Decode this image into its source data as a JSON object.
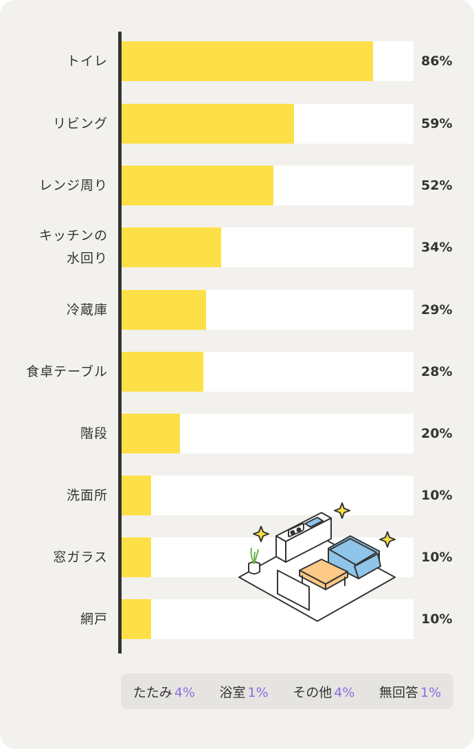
{
  "chart_data": {
    "type": "bar",
    "orientation": "horizontal",
    "title": "",
    "xlabel": "",
    "ylabel": "",
    "xlim": [
      0,
      100
    ],
    "grid": false,
    "categories": [
      "トイレ",
      "リビング",
      "レンジ周り",
      "キッチンの\n水回り",
      "冷蔵庫",
      "食卓テーブル",
      "階段",
      "洗面所",
      "窓ガラス",
      "網戸"
    ],
    "values": [
      86,
      59,
      52,
      34,
      29,
      28,
      20,
      10,
      10,
      10
    ],
    "value_labels": [
      "86%",
      "59%",
      "52%",
      "34%",
      "29%",
      "28%",
      "20%",
      "10%",
      "10%",
      "10%"
    ],
    "bar_color": "#fde047",
    "track_color": "#ffffff",
    "others": [
      {
        "label": "たたみ",
        "value": "4%"
      },
      {
        "label": "浴室",
        "value": "1%"
      },
      {
        "label": "その他",
        "value": "4%"
      },
      {
        "label": "無回答",
        "value": "1%"
      }
    ],
    "others_value_color": "#8b6ddf"
  },
  "illustration": {
    "icon": "living-room-illustration",
    "colors": {
      "sofa": "#8ec5e8",
      "table": "#fcc987",
      "plant": "#6ab04c",
      "sparkle": "#fde047",
      "outline": "#333333"
    }
  }
}
